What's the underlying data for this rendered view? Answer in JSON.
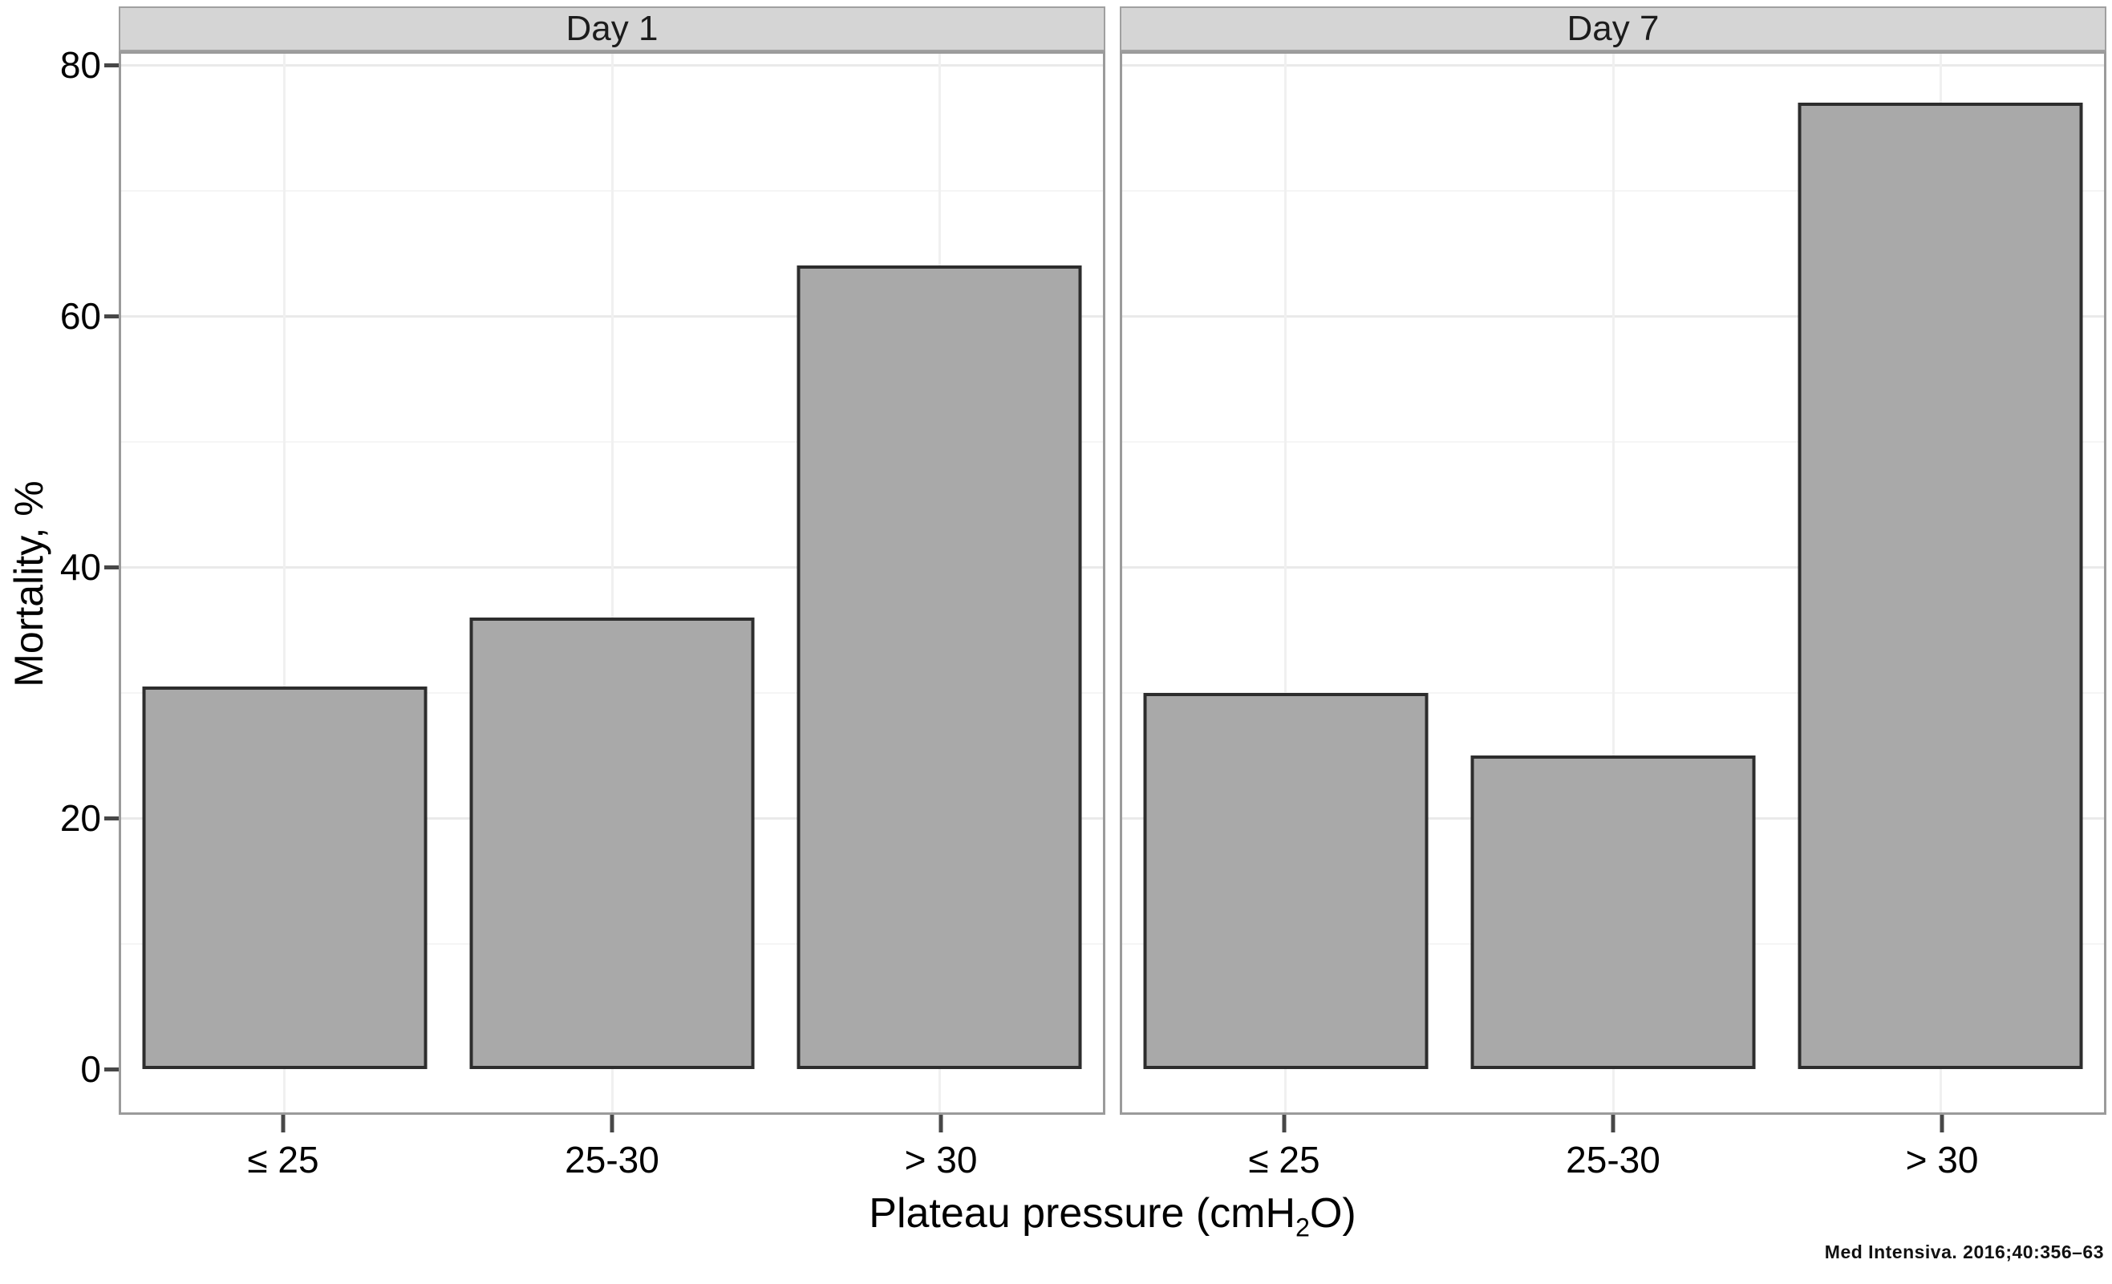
{
  "figure": {
    "y_axis_title": "Mortality, %",
    "x_axis_title": {
      "pre": "Plateau pressure (cmH",
      "sub": "2",
      "post": "O)"
    },
    "citation": "Med Intensiva. 2016;40:356–63"
  },
  "chart_data": {
    "type": "bar",
    "title": "",
    "xlabel": "Plateau pressure (cmH2O)",
    "ylabel": "Mortality, %",
    "categories": [
      "≤ 25",
      "25-30",
      "> 30"
    ],
    "facets": [
      {
        "label": "Day 1",
        "values": [
          30.5,
          36,
          64
        ]
      },
      {
        "label": "Day 7",
        "values": [
          30,
          25,
          77
        ]
      }
    ],
    "ylim": [
      0,
      80
    ],
    "yticks": [
      0,
      20,
      40,
      60,
      80
    ],
    "minor_gridlines": [
      10,
      30,
      50,
      70
    ],
    "grid": "on",
    "legend": "none",
    "bar_fill": "#a9a9a9",
    "bar_border": "#2d2d2d",
    "strip_fill": "#d5d5d5"
  }
}
